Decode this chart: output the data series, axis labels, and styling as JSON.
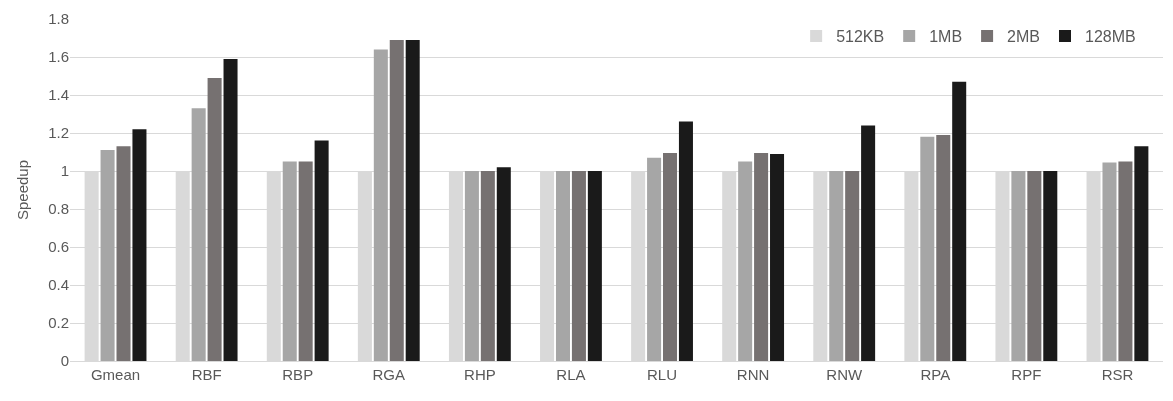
{
  "chart_data": {
    "type": "bar",
    "ylabel": "Speedup",
    "categories": [
      "Gmean",
      "RBF",
      "RBP",
      "RGA",
      "RHP",
      "RLA",
      "RLU",
      "RNN",
      "RNW",
      "RPA",
      "RPF",
      "RSR"
    ],
    "series": [
      {
        "name": "512KB",
        "color": "#d9d9d9",
        "values": [
          1,
          1,
          1,
          1,
          1,
          1,
          1,
          1,
          1,
          1,
          1,
          1
        ]
      },
      {
        "name": "1MB",
        "color": "#a6a6a6",
        "values": [
          1.11,
          1.33,
          1.05,
          1.64,
          1,
          1,
          1.07,
          1.05,
          1,
          1.18,
          1,
          1.045
        ]
      },
      {
        "name": "2MB",
        "color": "#767171",
        "values": [
          1.13,
          1.49,
          1.05,
          1.69,
          1,
          1,
          1.095,
          1.095,
          1.0,
          1.19,
          1,
          1.05
        ]
      },
      {
        "name": "128MB",
        "color": "#1a1a1a",
        "values": [
          1.22,
          1.59,
          1.16,
          1.69,
          1.02,
          1,
          1.26,
          1.09,
          1.24,
          1.47,
          1,
          1.13
        ]
      }
    ],
    "ylim": [
      0,
      1.8
    ],
    "yticks": [
      0,
      0.2,
      0.4,
      0.6,
      0.8,
      1,
      1.2,
      1.4,
      1.6,
      1.8
    ],
    "grid": "y",
    "legend": "top right"
  }
}
